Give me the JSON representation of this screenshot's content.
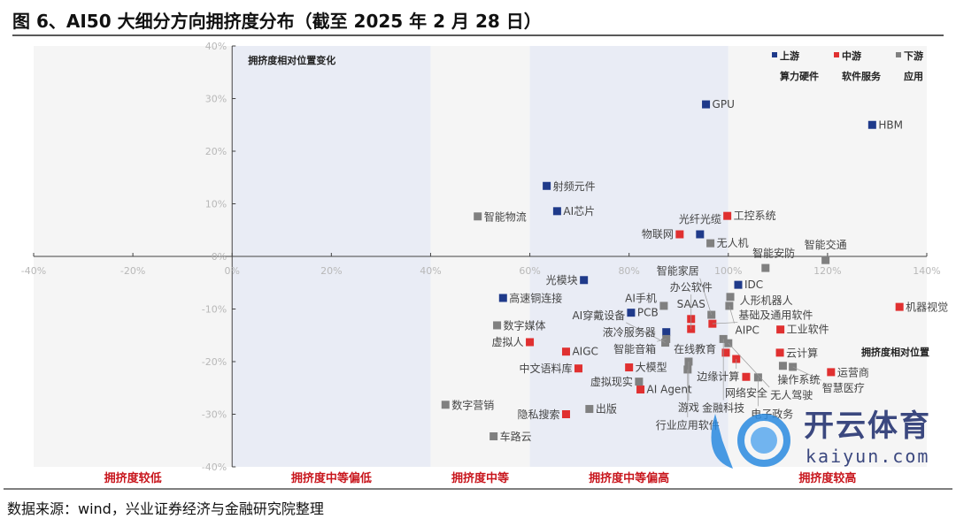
{
  "title": "图 6、AI50 大细分方向拥挤度分布（截至 2025 年 2 月 28 日）",
  "source": "数据来源：wind，兴业证券经济与金融研究院整理",
  "watermark": {
    "text": "开云体育",
    "url_text": "kaiyun.com"
  },
  "chart_data": {
    "type": "scatter",
    "xlim": [
      -40,
      140
    ],
    "ylim": [
      -40,
      40
    ],
    "x_ticks": [
      "-40%",
      "-20%",
      "0%",
      "20%",
      "40%",
      "60%",
      "80%",
      "100%",
      "120%",
      "140%"
    ],
    "y_ticks": [
      "40%",
      "30%",
      "20%",
      "10%",
      "0%",
      "-10%",
      "-20%",
      "-30%",
      "-40%"
    ],
    "xlabel": "拥挤度相对位置",
    "ylabel": "拥挤度相对位置变化",
    "bands": [
      {
        "range": [
          -40,
          0
        ],
        "label": "拥挤度较低",
        "color": "#f5f5f5"
      },
      {
        "range": [
          0,
          40
        ],
        "label": "拥挤度中等偏低",
        "color": "#e9ecf5"
      },
      {
        "range": [
          40,
          60
        ],
        "label": "拥挤度中等",
        "color": "#f5f5f5"
      },
      {
        "range": [
          60,
          100
        ],
        "label": "拥挤度中等偏高",
        "color": "#e9ecf5"
      },
      {
        "range": [
          100,
          140
        ],
        "label": "拥挤度较高",
        "color": "#f5f5f5"
      }
    ],
    "legend": {
      "position": "top-right"
    },
    "series": [
      {
        "name": "上游",
        "sub": "算力硬件",
        "color": "#1f3a8a",
        "points": [
          {
            "label": "GPU",
            "x": 95.5,
            "y": 28.9
          },
          {
            "label": "HBM",
            "x": 129,
            "y": 25
          },
          {
            "label": "射频元件",
            "x": 63.4,
            "y": 13.4
          },
          {
            "label": "AI芯片",
            "x": 65.5,
            "y": 8.6
          },
          {
            "label": "光纤光缆",
            "x": 94.3,
            "y": 4.2
          },
          {
            "label": "光模块",
            "x": 70.9,
            "y": -4.5
          },
          {
            "label": "高速铜连接",
            "x": 54.6,
            "y": -7.9
          },
          {
            "label": "IDC",
            "x": 102,
            "y": -5.4
          },
          {
            "label": "PCB",
            "x": 80.4,
            "y": -10.7
          },
          {
            "label": "液冷服务器",
            "x": 87.5,
            "y": -14.4
          }
        ]
      },
      {
        "name": "中游",
        "sub": "软件服务",
        "color": "#e03030",
        "points": [
          {
            "label": "工控系统",
            "x": 99.8,
            "y": 7.7
          },
          {
            "label": "物联网",
            "x": 90.2,
            "y": 4.2
          },
          {
            "label": "机器视觉",
            "x": 134.5,
            "y": -9.6
          },
          {
            "label": "工业软件",
            "x": 110.5,
            "y": -13.9
          },
          {
            "label": "SAAS",
            "x": 92.5,
            "y": -11.9
          },
          {
            "label": "基础及通用软件",
            "x": 96.8,
            "y": -12.8
          },
          {
            "label": "办公软件",
            "x": 92.5,
            "y": -13.8
          },
          {
            "label": "在线教育",
            "x": 99.5,
            "y": -18.3
          },
          {
            "label": "边缘计算",
            "x": 101.6,
            "y": -19.5
          },
          {
            "label": "网络安全",
            "x": 103.6,
            "y": -22.9
          },
          {
            "label": "云计算",
            "x": 110.4,
            "y": -18.3
          },
          {
            "label": "运营商",
            "x": 120.7,
            "y": -22
          },
          {
            "label": "中文语料库",
            "x": 69.8,
            "y": -21.3
          },
          {
            "label": "虚拟人",
            "x": 60,
            "y": -16.3
          },
          {
            "label": "AIGC",
            "x": 67.3,
            "y": -18.1
          },
          {
            "label": "AI Agent",
            "x": 82.3,
            "y": -25.3
          },
          {
            "label": "隐私搜索",
            "x": 67.3,
            "y": -30
          },
          {
            "label": "大模型",
            "x": 80,
            "y": -21.1
          }
        ]
      },
      {
        "name": "下游",
        "sub": "应用",
        "color": "#808080",
        "points": [
          {
            "label": "智能物流",
            "x": 49.5,
            "y": 7.6
          },
          {
            "label": "无人机",
            "x": 96.4,
            "y": 2.5
          },
          {
            "label": "智能交通",
            "x": 119.6,
            "y": -0.7
          },
          {
            "label": "智能安防",
            "x": 107.5,
            "y": -2.2
          },
          {
            "label": "人形机器人",
            "x": 100.4,
            "y": -7.7
          },
          {
            "label": "AIPC",
            "x": 100.2,
            "y": -9.4
          },
          {
            "label": "智能家居",
            "x": 96.6,
            "y": -11.1
          },
          {
            "label": "AI手机",
            "x": 87,
            "y": -9.4
          },
          {
            "label": "智能音箱",
            "x": 87.5,
            "y": -15.7
          },
          {
            "label": "金融科技",
            "x": 99,
            "y": -15.7
          },
          {
            "label": "无人驾驶",
            "x": 100,
            "y": -16.5
          },
          {
            "label": "操作系统",
            "x": 111,
            "y": -20.8
          },
          {
            "label": "智慧医疗",
            "x": 113,
            "y": -21
          },
          {
            "label": "游戏",
            "x": 92,
            "y": -20
          },
          {
            "label": "虚拟现实",
            "x": 82,
            "y": -23.8
          },
          {
            "label": "出版",
            "x": 72,
            "y": -29
          },
          {
            "label": "数字营销",
            "x": 43,
            "y": -28.2
          },
          {
            "label": "车路云",
            "x": 52.7,
            "y": -34.2
          },
          {
            "label": "数字媒体",
            "x": 53.4,
            "y": -13.1
          },
          {
            "label": "AI穿戴设备",
            "x": 87.3,
            "y": -16.4
          },
          {
            "label": "行业应用软件",
            "x": 91.8,
            "y": -21.5
          },
          {
            "label": "电子政务",
            "x": 106,
            "y": -23
          }
        ]
      }
    ]
  }
}
